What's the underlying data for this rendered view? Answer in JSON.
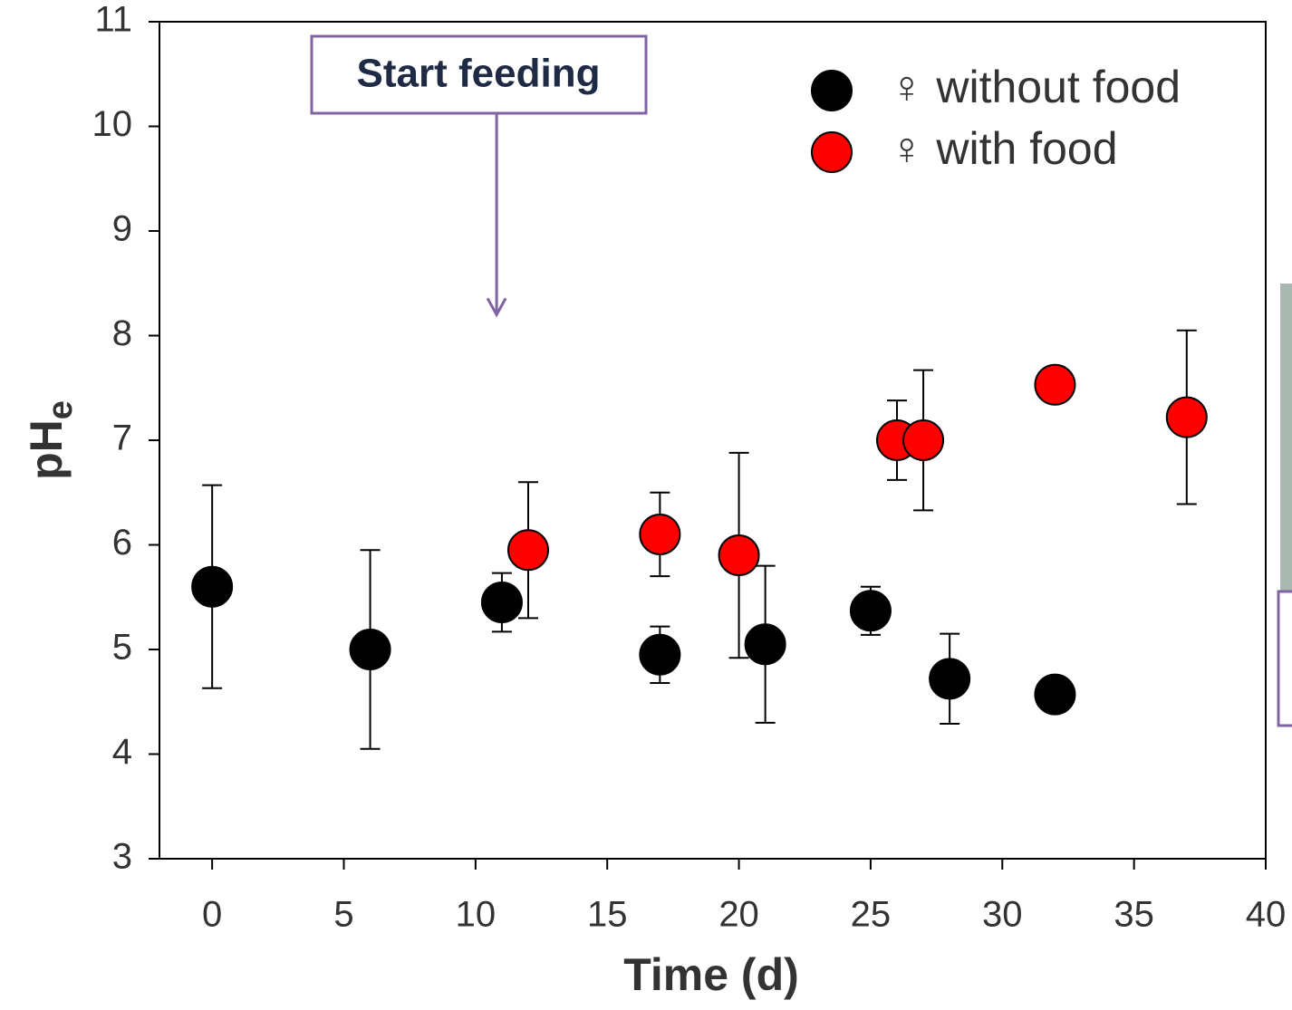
{
  "chart_data": {
    "type": "scatter",
    "xlabel": "Time (d)",
    "ylabel": {
      "main": "pH",
      "sub": "e"
    },
    "annotation": "Start feeding",
    "annotation_x": 10.8,
    "annotation_y": 8.2,
    "xlim": [
      -2,
      40
    ],
    "xticks": [
      0,
      5,
      10,
      15,
      20,
      25,
      30,
      35,
      40
    ],
    "ylim": [
      3,
      11
    ],
    "yticks": [
      3,
      4,
      5,
      6,
      7,
      8,
      9,
      10,
      11
    ],
    "series": [
      {
        "name": "♀ without food",
        "color": "#000000",
        "x": [
          0,
          6,
          11,
          17,
          21,
          25,
          28,
          32
        ],
        "values": [
          5.6,
          5.0,
          5.45,
          4.95,
          5.05,
          5.37,
          4.72,
          4.57
        ],
        "errors": [
          0.97,
          0.95,
          0.28,
          0.27,
          0.75,
          0.23,
          0.43,
          0.15
        ]
      },
      {
        "name": "♀ with food",
        "color": "#ff0000",
        "x": [
          12,
          17,
          20,
          26,
          27,
          32,
          37
        ],
        "values": [
          5.95,
          6.1,
          5.9,
          7.0,
          7.0,
          7.53,
          7.22
        ],
        "errors": [
          0.65,
          0.4,
          0.98,
          0.38,
          0.67,
          0,
          0.83
        ]
      }
    ]
  }
}
